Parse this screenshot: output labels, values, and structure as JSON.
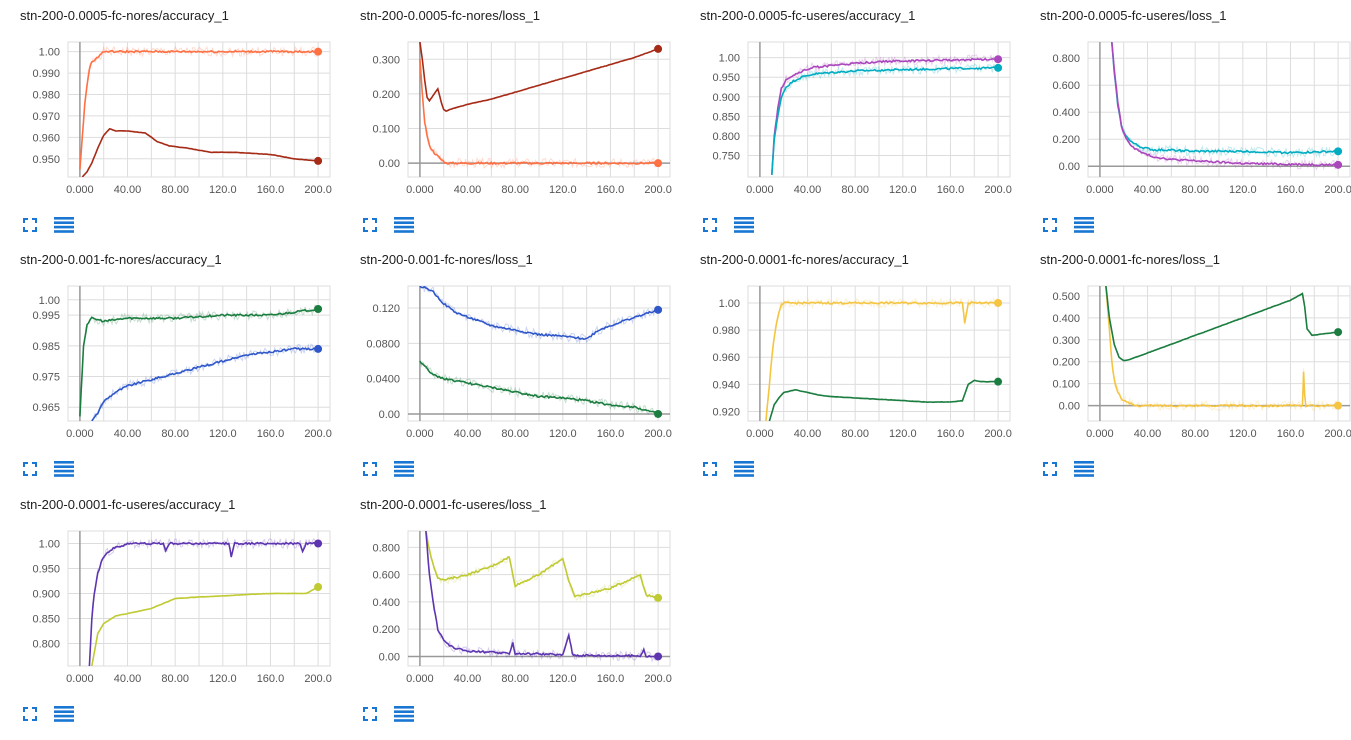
{
  "ui": {
    "grid_color": "#dddddd",
    "axis_color": "#999999",
    "button_color": "#1976d2",
    "expand_icon": "fullscreen-icon",
    "data_icon": "table-icon"
  },
  "chart_data": [
    {
      "title": "stn-200-0.0005-fc-nores/accuracy_1",
      "type": "line",
      "x_ticks": [
        "0.000",
        "40.00",
        "80.00",
        "120.0",
        "160.0",
        "200.0"
      ],
      "y_ticks": [
        "0.950",
        "0.960",
        "0.970",
        "0.980",
        "0.990",
        "1.00"
      ],
      "xlim": [
        -10,
        210
      ],
      "ylim": [
        0.9415,
        1.0045
      ],
      "series": [
        {
          "color": "#ff7043",
          "noisy": true,
          "x": [
            0,
            2,
            4,
            6,
            8,
            10,
            12,
            14,
            16,
            18,
            20,
            25,
            30,
            200
          ],
          "y": [
            0.945,
            0.96,
            0.975,
            0.985,
            0.992,
            0.995,
            0.996,
            0.997,
            0.998,
            0.999,
            1.0,
            1.0,
            1.0,
            1.0
          ]
        },
        {
          "color": "#a62b16",
          "noisy": false,
          "x": [
            2,
            6,
            10,
            15,
            20,
            25,
            30,
            40,
            55,
            65,
            75,
            90,
            110,
            130,
            160,
            180,
            200
          ],
          "y": [
            0.9415,
            0.944,
            0.948,
            0.955,
            0.961,
            0.964,
            0.963,
            0.963,
            0.962,
            0.958,
            0.956,
            0.955,
            0.953,
            0.953,
            0.952,
            0.95,
            0.949
          ]
        }
      ]
    },
    {
      "title": "stn-200-0.0005-fc-nores/loss_1",
      "type": "line",
      "x_ticks": [
        "0.000",
        "40.00",
        "80.00",
        "120.0",
        "160.0",
        "200.0"
      ],
      "y_ticks": [
        "0.00",
        "0.100",
        "0.200",
        "0.300"
      ],
      "xlim": [
        -10,
        210
      ],
      "ylim": [
        -0.04,
        0.35
      ],
      "series": [
        {
          "color": "#ff7043",
          "noisy": true,
          "x": [
            0,
            2,
            4,
            6,
            8,
            10,
            12,
            15,
            18,
            22,
            30,
            200
          ],
          "y": [
            0.3,
            0.2,
            0.12,
            0.08,
            0.05,
            0.04,
            0.03,
            0.02,
            0.01,
            0.0,
            0.0,
            0.0
          ]
        },
        {
          "color": "#a62b16",
          "noisy": false,
          "x": [
            0,
            2,
            4,
            6,
            8,
            10,
            12,
            15,
            18,
            20,
            22,
            25,
            30,
            40,
            60,
            80,
            100,
            120,
            140,
            160,
            180,
            200
          ],
          "y": [
            0.35,
            0.3,
            0.24,
            0.19,
            0.18,
            0.19,
            0.2,
            0.215,
            0.175,
            0.155,
            0.15,
            0.155,
            0.16,
            0.17,
            0.185,
            0.205,
            0.225,
            0.245,
            0.265,
            0.285,
            0.305,
            0.33
          ]
        }
      ]
    },
    {
      "title": "stn-200-0.0005-fc-useres/accuracy_1",
      "type": "line",
      "x_ticks": [
        "0.000",
        "40.00",
        "80.00",
        "120.0",
        "160.0",
        "200.0"
      ],
      "y_ticks": [
        "0.750",
        "0.800",
        "0.850",
        "0.900",
        "0.950",
        "1.00"
      ],
      "xlim": [
        -10,
        210
      ],
      "ylim": [
        0.695,
        1.04
      ],
      "series": [
        {
          "color": "#ab47bc",
          "noisy": true,
          "x": [
            10,
            12,
            15,
            18,
            22,
            28,
            35,
            45,
            60,
            80,
            100,
            130,
            160,
            200
          ],
          "y": [
            0.7,
            0.8,
            0.87,
            0.92,
            0.945,
            0.955,
            0.965,
            0.975,
            0.98,
            0.985,
            0.99,
            0.992,
            0.994,
            0.996
          ]
        },
        {
          "color": "#00acc1",
          "noisy": true,
          "x": [
            10,
            12,
            15,
            18,
            22,
            28,
            35,
            45,
            60,
            80,
            100,
            130,
            160,
            200
          ],
          "y": [
            0.7,
            0.79,
            0.85,
            0.9,
            0.925,
            0.94,
            0.95,
            0.958,
            0.962,
            0.966,
            0.968,
            0.97,
            0.972,
            0.974
          ]
        }
      ]
    },
    {
      "title": "stn-200-0.0005-fc-useres/loss_1",
      "type": "line",
      "x_ticks": [
        "0.000",
        "40.00",
        "80.00",
        "120.0",
        "160.0",
        "200.0"
      ],
      "y_ticks": [
        "0.00",
        "0.200",
        "0.400",
        "0.600",
        "0.800"
      ],
      "xlim": [
        -10,
        210
      ],
      "ylim": [
        -0.08,
        0.92
      ],
      "series": [
        {
          "color": "#00acc1",
          "noisy": true,
          "x": [
            10,
            12,
            15,
            18,
            22,
            28,
            35,
            45,
            60,
            80,
            120,
            160,
            200
          ],
          "y": [
            0.92,
            0.7,
            0.45,
            0.3,
            0.22,
            0.17,
            0.14,
            0.12,
            0.12,
            0.11,
            0.11,
            0.1,
            0.11
          ]
        },
        {
          "color": "#ab47bc",
          "noisy": true,
          "x": [
            10,
            12,
            15,
            18,
            22,
            28,
            35,
            45,
            60,
            80,
            120,
            160,
            200
          ],
          "y": [
            0.92,
            0.72,
            0.48,
            0.3,
            0.2,
            0.14,
            0.1,
            0.07,
            0.05,
            0.04,
            0.02,
            0.015,
            0.01
          ]
        }
      ]
    },
    {
      "title": "stn-200-0.001-fc-nores/accuracy_1",
      "type": "line",
      "x_ticks": [
        "0.000",
        "40.00",
        "80.00",
        "120.0",
        "160.0",
        "200.0"
      ],
      "y_ticks": [
        "0.965",
        "0.975",
        "0.985",
        "0.995",
        "1.00"
      ],
      "xlim": [
        -10,
        210
      ],
      "ylim": [
        0.9605,
        1.0045
      ],
      "series": [
        {
          "color": "#1b7d3f",
          "noisy": true,
          "x": [
            0,
            3,
            6,
            10,
            20,
            40,
            80,
            120,
            160,
            200
          ],
          "y": [
            0.962,
            0.985,
            0.992,
            0.994,
            0.993,
            0.994,
            0.994,
            0.995,
            0.995,
            0.997
          ]
        },
        {
          "color": "#2f57c9",
          "noisy": true,
          "x": [
            10,
            15,
            20,
            30,
            40,
            60,
            80,
            100,
            120,
            140,
            160,
            180,
            200
          ],
          "y": [
            0.9605,
            0.963,
            0.967,
            0.97,
            0.972,
            0.974,
            0.976,
            0.978,
            0.98,
            0.982,
            0.983,
            0.984,
            0.984
          ]
        }
      ]
    },
    {
      "title": "stn-200-0.001-fc-nores/loss_1",
      "type": "line",
      "x_ticks": [
        "0.000",
        "40.00",
        "80.00",
        "120.0",
        "160.0",
        "200.0"
      ],
      "y_ticks": [
        "0.00",
        "0.0400",
        "0.0800",
        "0.120"
      ],
      "xlim": [
        -10,
        210
      ],
      "ylim": [
        -0.008,
        0.145
      ],
      "series": [
        {
          "color": "#2f57c9",
          "noisy": true,
          "x": [
            0,
            10,
            20,
            30,
            40,
            60,
            80,
            100,
            120,
            140,
            150,
            170,
            200
          ],
          "y": [
            0.145,
            0.14,
            0.125,
            0.115,
            0.11,
            0.1,
            0.095,
            0.09,
            0.088,
            0.085,
            0.095,
            0.105,
            0.118
          ]
        },
        {
          "color": "#1b7d3f",
          "noisy": true,
          "x": [
            0,
            10,
            20,
            40,
            60,
            80,
            100,
            120,
            140,
            160,
            180,
            200
          ],
          "y": [
            0.06,
            0.045,
            0.04,
            0.035,
            0.03,
            0.025,
            0.02,
            0.018,
            0.015,
            0.01,
            0.008,
            0.0
          ]
        }
      ]
    },
    {
      "title": "stn-200-0.0001-fc-nores/accuracy_1",
      "type": "line",
      "x_ticks": [
        "0.000",
        "40.00",
        "80.00",
        "120.0",
        "160.0",
        "200.0"
      ],
      "y_ticks": [
        "0.920",
        "0.940",
        "0.960",
        "0.980",
        "1.00"
      ],
      "xlim": [
        -10,
        210
      ],
      "ylim": [
        0.913,
        1.0125
      ],
      "series": [
        {
          "color": "#f5c542",
          "noisy": true,
          "x": [
            5,
            8,
            10,
            12,
            15,
            18,
            20,
            25,
            170,
            172,
            175,
            180,
            200
          ],
          "y": [
            0.913,
            0.94,
            0.96,
            0.975,
            0.99,
            0.998,
            1.0,
            1.0,
            1.0,
            0.985,
            1.0,
            1.0,
            1.0
          ]
        },
        {
          "color": "#1b7d3f",
          "noisy": false,
          "x": [
            8,
            12,
            16,
            20,
            25,
            30,
            35,
            40,
            50,
            60,
            80,
            100,
            120,
            140,
            160,
            170,
            175,
            180,
            185,
            200
          ],
          "y": [
            0.913,
            0.925,
            0.93,
            0.934,
            0.935,
            0.936,
            0.935,
            0.934,
            0.932,
            0.931,
            0.93,
            0.929,
            0.928,
            0.927,
            0.927,
            0.928,
            0.94,
            0.943,
            0.942,
            0.942
          ]
        }
      ]
    },
    {
      "title": "stn-200-0.0001-fc-nores/loss_1",
      "type": "line",
      "x_ticks": [
        "0.000",
        "40.00",
        "80.00",
        "120.0",
        "160.0",
        "200.0"
      ],
      "y_ticks": [
        "0.00",
        "0.100",
        "0.200",
        "0.300",
        "0.400",
        "0.500"
      ],
      "xlim": [
        -10,
        210
      ],
      "ylim": [
        -0.07,
        0.545
      ],
      "series": [
        {
          "color": "#f5c542",
          "noisy": true,
          "x": [
            5,
            8,
            10,
            12,
            15,
            20,
            25,
            30,
            40,
            170,
            171,
            172,
            173,
            175,
            180,
            200
          ],
          "y": [
            0.545,
            0.35,
            0.2,
            0.12,
            0.06,
            0.02,
            0.01,
            0.0,
            0.0,
            0.0,
            0.15,
            0.05,
            0.0,
            0.0,
            0.0,
            0.0
          ]
        },
        {
          "color": "#1b7d3f",
          "noisy": false,
          "x": [
            5,
            8,
            12,
            16,
            20,
            25,
            30,
            40,
            60,
            80,
            100,
            120,
            140,
            160,
            170,
            172,
            174,
            178,
            185,
            200
          ],
          "y": [
            0.545,
            0.4,
            0.28,
            0.22,
            0.205,
            0.21,
            0.22,
            0.24,
            0.28,
            0.32,
            0.36,
            0.4,
            0.44,
            0.48,
            0.51,
            0.45,
            0.35,
            0.32,
            0.325,
            0.335
          ]
        }
      ]
    },
    {
      "title": "stn-200-0.0001-fc-useres/accuracy_1",
      "type": "line",
      "x_ticks": [
        "0.000",
        "40.00",
        "80.00",
        "120.0",
        "160.0",
        "200.0"
      ],
      "y_ticks": [
        "0.800",
        "0.850",
        "0.900",
        "0.950",
        "1.00"
      ],
      "xlim": [
        -10,
        210
      ],
      "ylim": [
        0.755,
        1.025
      ],
      "series": [
        {
          "color": "#5e35b1",
          "noisy": true,
          "x": [
            8,
            10,
            12,
            15,
            18,
            22,
            28,
            35,
            40,
            70,
            72,
            75,
            125,
            127,
            130,
            185,
            187,
            190,
            200
          ],
          "y": [
            0.755,
            0.85,
            0.9,
            0.94,
            0.965,
            0.98,
            0.99,
            0.995,
            1.0,
            1.0,
            0.985,
            1.0,
            1.0,
            0.975,
            1.0,
            1.0,
            0.985,
            1.0,
            1.0
          ]
        },
        {
          "color": "#c0ca33",
          "noisy": false,
          "x": [
            10,
            15,
            20,
            30,
            40,
            50,
            60,
            70,
            80,
            100,
            120,
            140,
            160,
            180,
            190,
            200
          ],
          "y": [
            0.755,
            0.82,
            0.84,
            0.855,
            0.86,
            0.865,
            0.87,
            0.88,
            0.89,
            0.893,
            0.895,
            0.898,
            0.9,
            0.9,
            0.9,
            0.913
          ]
        }
      ]
    },
    {
      "title": "stn-200-0.0001-fc-useres/loss_1",
      "type": "line",
      "x_ticks": [
        "0.000",
        "40.00",
        "80.00",
        "120.0",
        "160.0",
        "200.0"
      ],
      "y_ticks": [
        "0.00",
        "0.200",
        "0.400",
        "0.600",
        "0.800"
      ],
      "xlim": [
        -10,
        210
      ],
      "ylim": [
        -0.07,
        0.92
      ],
      "series": [
        {
          "color": "#c0ca33",
          "noisy": true,
          "x": [
            5,
            8,
            12,
            15,
            20,
            30,
            40,
            60,
            75,
            78,
            80,
            100,
            120,
            125,
            130,
            160,
            185,
            190,
            200
          ],
          "y": [
            0.92,
            0.78,
            0.65,
            0.58,
            0.56,
            0.58,
            0.6,
            0.66,
            0.73,
            0.6,
            0.52,
            0.6,
            0.72,
            0.55,
            0.44,
            0.5,
            0.6,
            0.45,
            0.43
          ]
        },
        {
          "color": "#5e35b1",
          "noisy": true,
          "x": [
            5,
            8,
            12,
            15,
            20,
            25,
            30,
            40,
            60,
            75,
            78,
            80,
            100,
            120,
            125,
            128,
            130,
            160,
            185,
            188,
            190,
            200
          ],
          "y": [
            0.92,
            0.6,
            0.35,
            0.2,
            0.12,
            0.08,
            0.06,
            0.04,
            0.03,
            0.02,
            0.1,
            0.02,
            0.02,
            0.01,
            0.16,
            0.02,
            0.01,
            0.005,
            0.005,
            0.05,
            0.0,
            0.0
          ]
        }
      ]
    }
  ]
}
